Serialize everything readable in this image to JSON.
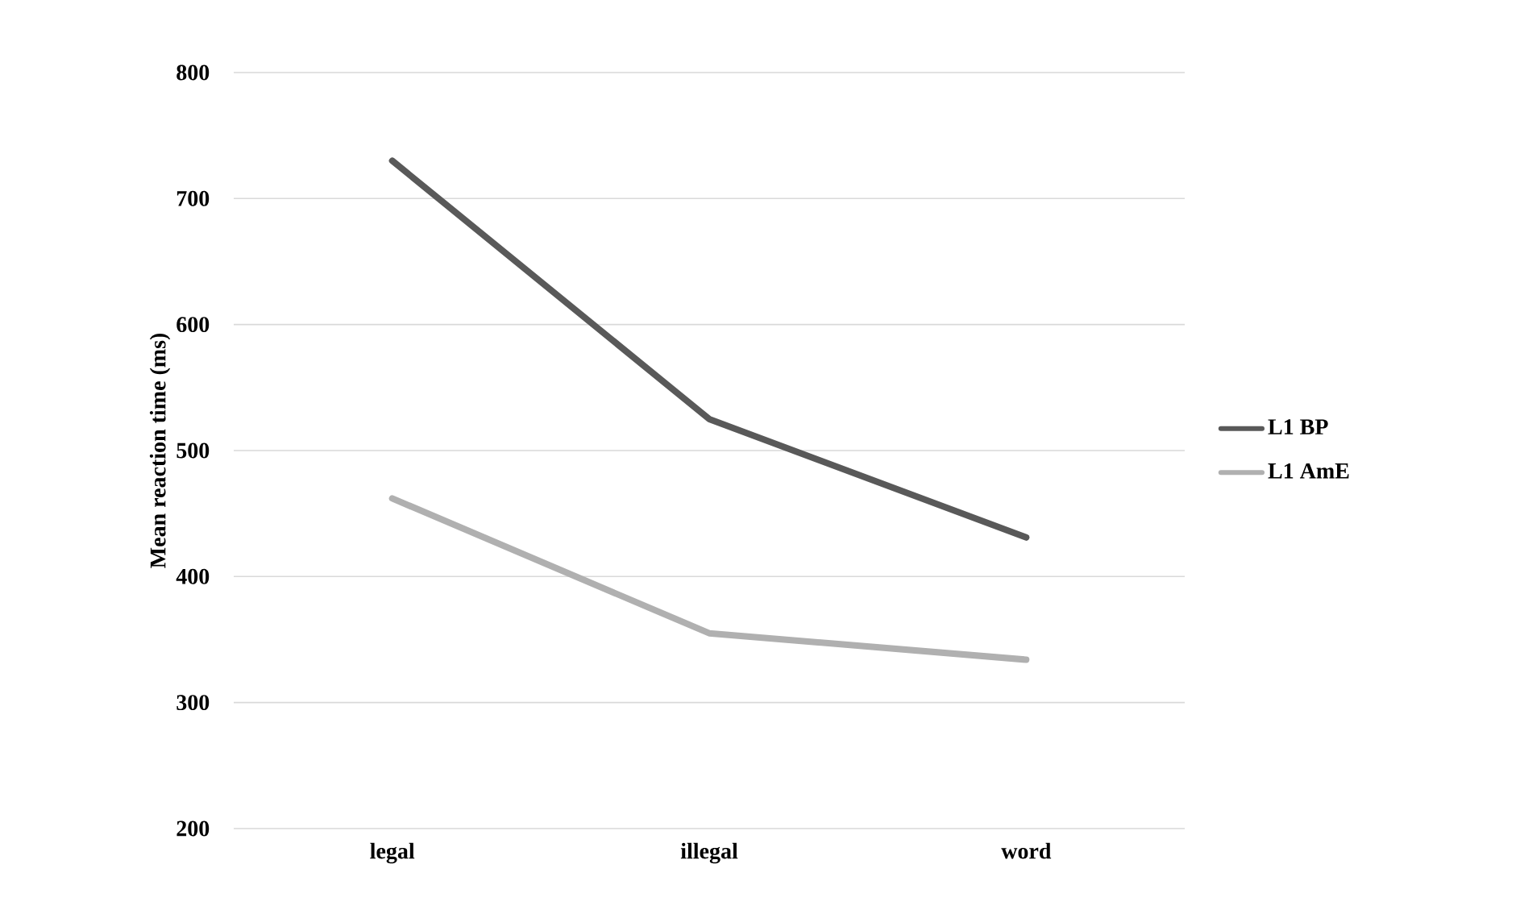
{
  "chart_data": {
    "type": "line",
    "ylabel": "Mean reaction time (ms)",
    "categories": [
      "legal",
      "illegal",
      "word"
    ],
    "series": [
      {
        "name": "L1 BP",
        "color": "#595959",
        "values": [
          730,
          525,
          431
        ]
      },
      {
        "name": "L1 AmE",
        "color": "#b0b0b0",
        "values": [
          462,
          355,
          334
        ]
      }
    ],
    "ylim": [
      200,
      800
    ],
    "yticks": [
      200,
      300,
      400,
      500,
      600,
      700,
      800
    ],
    "grid": "y",
    "legend": "right",
    "marker": "none",
    "line_style": "solid"
  }
}
